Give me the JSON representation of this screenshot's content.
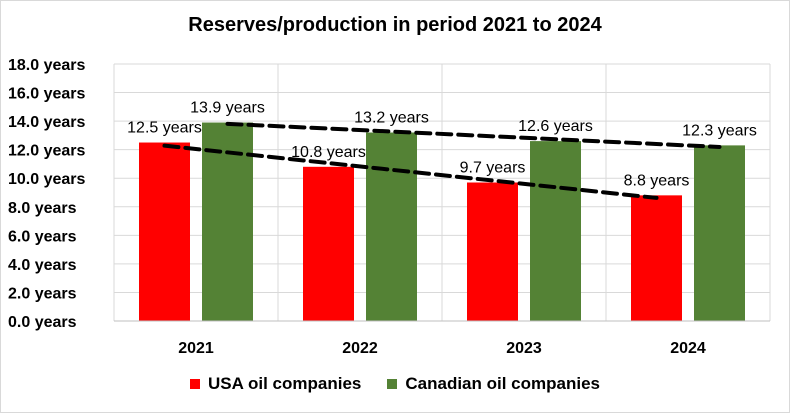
{
  "chart_data": {
    "type": "bar",
    "title": "Reserves/production in period 2021 to 2024",
    "xlabel": "",
    "ylabel": "",
    "categories": [
      "2021",
      "2022",
      "2023",
      "2024"
    ],
    "series": [
      {
        "name": "USA oil companies",
        "color": "#ff0000",
        "values": [
          12.5,
          10.8,
          9.7,
          8.8
        ],
        "labels": [
          "12.5 years",
          "10.8 years",
          "9.7 years",
          "8.8 years"
        ]
      },
      {
        "name": "Canadian oil companies",
        "color": "#548235",
        "values": [
          13.9,
          13.2,
          12.6,
          12.3
        ],
        "labels": [
          "13.9 years",
          "13.2 years",
          "12.6 years",
          "12.3 years"
        ]
      }
    ],
    "ylim": [
      0,
      18
    ],
    "yticks": [
      0,
      2,
      4,
      6,
      8,
      10,
      12,
      14,
      16,
      18
    ],
    "ytick_labels": [
      "0.0 years",
      "2.0 years",
      "4.0 years",
      "6.0 years",
      "8.0 years",
      "10.0 years",
      "12.0 years",
      "14.0 years",
      "16.0 years",
      "18.0 years"
    ],
    "grid": true,
    "legend_position": "bottom",
    "trendlines": "dashed black linear trend for each series"
  }
}
